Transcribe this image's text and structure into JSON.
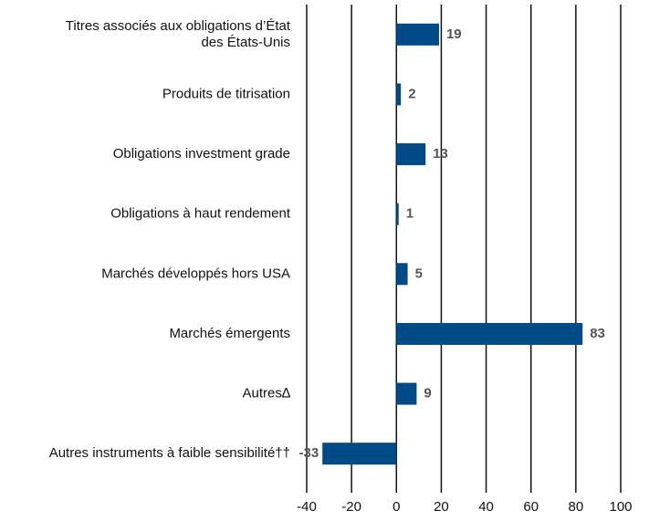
{
  "chart_data": {
    "type": "bar",
    "orientation": "horizontal",
    "categories": [
      "Titres associés aux obligations d’État\ndes États-Unis",
      "Produits de titrisation",
      "Obligations investment grade",
      "Obligations à haut rendement",
      "Marchés développés hors USA",
      "Marchés émergents",
      "Autres∆",
      "Autres instruments à faible sensibilité††"
    ],
    "values": [
      19,
      2,
      13,
      1,
      5,
      83,
      9,
      -33
    ],
    "color": "#004b87",
    "xlim": [
      -40,
      100
    ],
    "xticks": [
      -40,
      -20,
      0,
      20,
      40,
      60,
      80,
      100
    ],
    "grid": true
  }
}
